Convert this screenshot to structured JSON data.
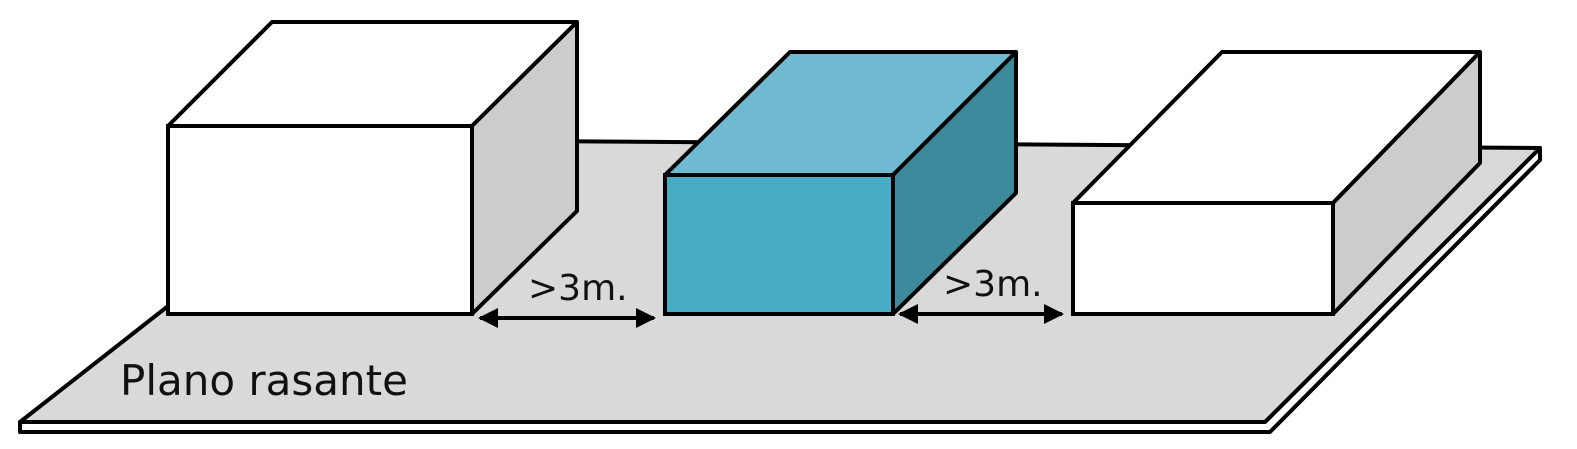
{
  "plane": {
    "label": "Plano rasante",
    "top_color": "#d9d9d9",
    "side_color": "#ffffff"
  },
  "blocks": [
    {
      "id": "left",
      "front_color": "#ffffff",
      "top_color": "#ffffff",
      "side_color": "#cccccc"
    },
    {
      "id": "middle",
      "front_color": "#4aabc6",
      "top_color": "#70bad1",
      "side_color": "#3e8a9d"
    },
    {
      "id": "right",
      "front_color": "#ffffff",
      "top_color": "#ffffff",
      "side_color": "#cccccc"
    }
  ],
  "separations": [
    {
      "label": ">3m."
    },
    {
      "label": ">3m."
    }
  ],
  "outline_color": "#000000"
}
